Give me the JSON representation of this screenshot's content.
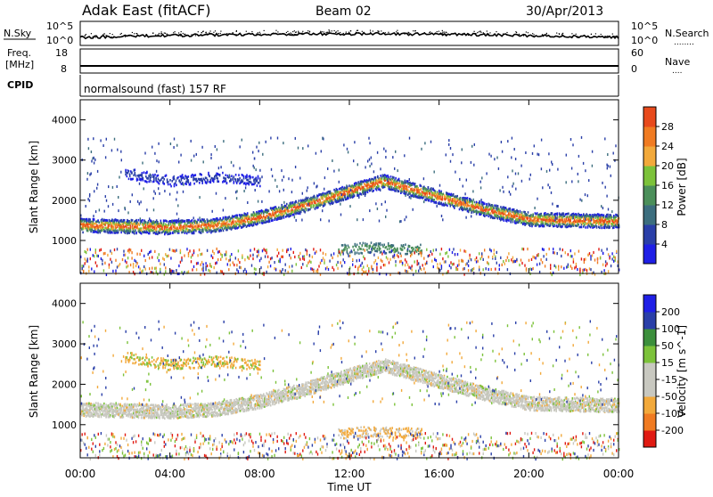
{
  "header": {
    "station": "Adak East (fitACF)",
    "beam": "Beam 02",
    "date": "30/Apr/2013"
  },
  "noise_panel": {
    "left_label": "N.Sky",
    "right_label": "N.Search",
    "right_legend": "........",
    "ticks_top": "10^5",
    "ticks_bottom": "10^0"
  },
  "freq_panel": {
    "left_label_1": "Freq.",
    "left_label_2": "[MHz]",
    "right_label": "Nave",
    "right_legend": "....",
    "left_ticks": [
      "18",
      "8"
    ],
    "right_ticks": [
      "60",
      "0"
    ]
  },
  "cpid_panel": {
    "label": "CPID",
    "text": "normalsound (fast) 157 RF"
  },
  "x_axis": {
    "title": "Time UT",
    "ticks": [
      "00:00",
      "04:00",
      "08:00",
      "12:00",
      "16:00",
      "20:00",
      "00:00"
    ],
    "range_hours": [
      0,
      24
    ]
  },
  "colors": {
    "power_scale": [
      "#1f1fe6",
      "#2a3fa8",
      "#3c6e7e",
      "#4b8f5a",
      "#7cc23a",
      "#f2a93b",
      "#f07b22",
      "#e84a1c",
      "#e01a12"
    ],
    "velocity_scale": [
      "#e01a12",
      "#f07b22",
      "#f2a93b",
      "#c8c8c0",
      "#c8c8c0",
      "#7cc23a",
      "#3c8f3c",
      "#2a3fa8",
      "#1f1fe6"
    ]
  },
  "chart_data": [
    {
      "type": "heatmap",
      "title": "",
      "ylabel": "Slant Range [km]",
      "xlabel": "",
      "ylim": [
        180,
        4500
      ],
      "y_ticks": [
        "1000",
        "2000",
        "3000",
        "4000"
      ],
      "colorbar": {
        "label": "Power [dB]",
        "ticks": [
          "4",
          "8",
          "12",
          "16",
          "20",
          "24",
          "28"
        ],
        "range": [
          0,
          32
        ]
      },
      "echo_bands": [
        {
          "name": "",
          "x_hours": [
            0,
            4,
            6,
            8,
            10,
            12,
            13.5,
            16,
            18,
            20,
            24
          ],
          "range_km": [
            1400,
            1350,
            1400,
            1600,
            1900,
            2250,
            2500,
            2100,
            1800,
            1550,
            1500
          ],
          "peak_db": 24
        },
        {
          "name": "",
          "x_hours": [
            2,
            4,
            6,
            8
          ],
          "range_km": [
            2700,
            2500,
            2600,
            2500
          ],
          "peak_db": 8
        },
        {
          "name": "",
          "x_hours": [
            11.5,
            13,
            15.2
          ],
          "range_km": [
            800,
            850,
            800
          ],
          "peak_db": 16
        }
      ]
    },
    {
      "type": "heatmap",
      "title": "",
      "ylabel": "Slant Range [km]",
      "xlabel": "Time UT",
      "ylim": [
        180,
        4500
      ],
      "y_ticks": [
        "1000",
        "2000",
        "3000",
        "4000"
      ],
      "colorbar": {
        "label": "Velocity [m s^-1]",
        "ticks": [
          "200",
          "100",
          "50",
          "15",
          "-15",
          "-50",
          "-100",
          "-200"
        ],
        "range": [
          -250,
          250
        ]
      },
      "echo_bands": [
        {
          "name": "",
          "x_hours": [
            0,
            4,
            6,
            8,
            10,
            12,
            13.5,
            16,
            18,
            20,
            24
          ],
          "range_km": [
            1400,
            1350,
            1400,
            1600,
            1900,
            2250,
            2500,
            2100,
            1800,
            1550,
            1500
          ],
          "peak_velocity": 0
        },
        {
          "name": "",
          "x_hours": [
            2,
            4,
            6,
            8
          ],
          "range_km": [
            2700,
            2500,
            2600,
            2500
          ],
          "peak_velocity": -50
        },
        {
          "name": "",
          "x_hours": [
            11.5,
            13,
            15.2
          ],
          "range_km": [
            800,
            850,
            800
          ],
          "peak_velocity": -100
        }
      ]
    }
  ]
}
